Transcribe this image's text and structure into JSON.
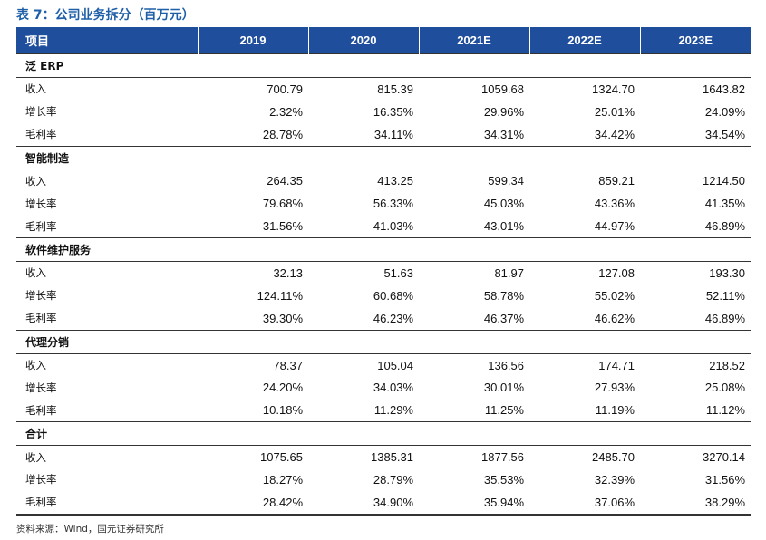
{
  "title": "表 7：公司业务拆分（百万元）",
  "columns": [
    "项目",
    "2019",
    "2020",
    "2021E",
    "2022E",
    "2023E"
  ],
  "sections": [
    {
      "name": "泛 ERP",
      "rows": [
        {
          "label": "收入",
          "values": [
            "700.79",
            "815.39",
            "1059.68",
            "1324.70",
            "1643.82"
          ]
        },
        {
          "label": "增长率",
          "values": [
            "2.32%",
            "16.35%",
            "29.96%",
            "25.01%",
            "24.09%"
          ]
        },
        {
          "label": "毛利率",
          "values": [
            "28.78%",
            "34.11%",
            "34.31%",
            "34.42%",
            "34.54%"
          ]
        }
      ]
    },
    {
      "name": "智能制造",
      "rows": [
        {
          "label": "收入",
          "values": [
            "264.35",
            "413.25",
            "599.34",
            "859.21",
            "1214.50"
          ]
        },
        {
          "label": "增长率",
          "values": [
            "79.68%",
            "56.33%",
            "45.03%",
            "43.36%",
            "41.35%"
          ]
        },
        {
          "label": "毛利率",
          "values": [
            "31.56%",
            "41.03%",
            "43.01%",
            "44.97%",
            "46.89%"
          ]
        }
      ]
    },
    {
      "name": "软件维护服务",
      "rows": [
        {
          "label": "收入",
          "values": [
            "32.13",
            "51.63",
            "81.97",
            "127.08",
            "193.30"
          ]
        },
        {
          "label": "增长率",
          "values": [
            "124.11%",
            "60.68%",
            "58.78%",
            "55.02%",
            "52.11%"
          ]
        },
        {
          "label": "毛利率",
          "values": [
            "39.30%",
            "46.23%",
            "46.37%",
            "46.62%",
            "46.89%"
          ]
        }
      ]
    },
    {
      "name": "代理分销",
      "rows": [
        {
          "label": "收入",
          "values": [
            "78.37",
            "105.04",
            "136.56",
            "174.71",
            "218.52"
          ]
        },
        {
          "label": "增长率",
          "values": [
            "24.20%",
            "34.03%",
            "30.01%",
            "27.93%",
            "25.08%"
          ]
        },
        {
          "label": "毛利率",
          "values": [
            "10.18%",
            "11.29%",
            "11.25%",
            "11.19%",
            "11.12%"
          ]
        }
      ]
    },
    {
      "name": "合计",
      "rows": [
        {
          "label": "收入",
          "values": [
            "1075.65",
            "1385.31",
            "1877.56",
            "2485.70",
            "3270.14"
          ]
        },
        {
          "label": "增长率",
          "values": [
            "18.27%",
            "28.79%",
            "35.53%",
            "32.39%",
            "31.56%"
          ]
        },
        {
          "label": "毛利率",
          "values": [
            "28.42%",
            "34.90%",
            "35.94%",
            "37.06%",
            "38.29%"
          ]
        }
      ]
    }
  ],
  "source": "资料来源：Wind，国元证券研究所",
  "colors": {
    "header_bg": "#1f4e9c",
    "title": "#1f5fa8"
  }
}
